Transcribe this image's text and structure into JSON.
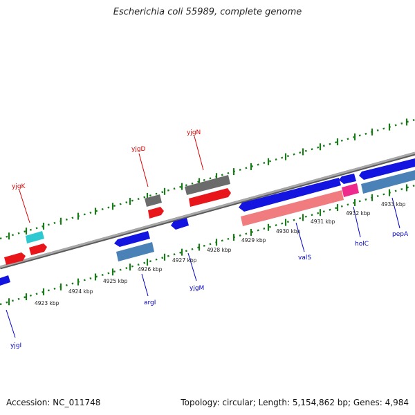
{
  "title": "Escherichia coli 55989, complete genome",
  "accession_text": "Accession: NC_011748",
  "summary_text": "Topology: circular; Length: 5,154,862 bp; Genes: 4,984",
  "colors": {
    "forward_cds": "#e8151a",
    "reverse_cds": "#1414e0",
    "rna": "#2ec8d0",
    "pseudo": "#6b6b6b",
    "operon_light_red": "#f07c80",
    "operon_steel": "#4a82b8",
    "pink": "#ee2a8c",
    "backbone": "#888888",
    "tick": "#1a7a1a",
    "label_red": "#dd0000",
    "label_blue": "#0000cc"
  },
  "kbp_labels": [
    "4923 kbp",
    "4924 kbp",
    "4925 kbp",
    "4926 kbp",
    "4927 kbp",
    "4928 kbp",
    "4929 kbp",
    "4930 kbp",
    "4931 kbp",
    "4932 kbp",
    "4933 kbp"
  ],
  "gene_labels": [
    {
      "text": "yjgK",
      "color": "red"
    },
    {
      "text": "yjgD",
      "color": "red"
    },
    {
      "text": "yjgN",
      "color": "red"
    },
    {
      "text": "yjgI",
      "color": "blue"
    },
    {
      "text": "argI",
      "color": "blue"
    },
    {
      "text": "yjgM",
      "color": "blue"
    },
    {
      "text": "valS",
      "color": "blue"
    },
    {
      "text": "holC",
      "color": "blue"
    },
    {
      "text": "pepA",
      "color": "blue"
    }
  ]
}
